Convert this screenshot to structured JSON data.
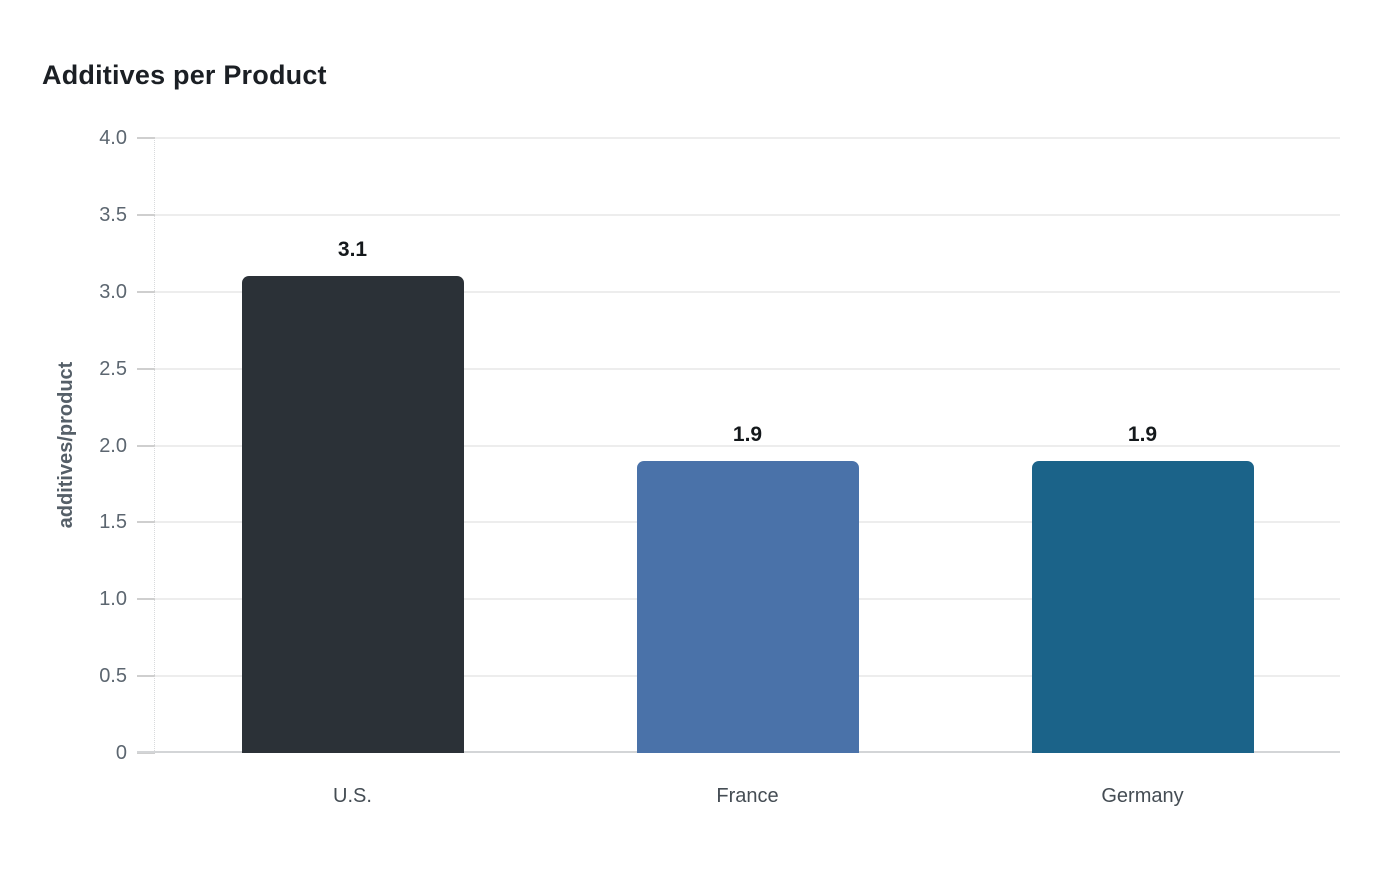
{
  "title": "Additives per Product",
  "chart_data": {
    "type": "bar",
    "title": "Additives per Product",
    "xlabel": "",
    "ylabel": "additives/product",
    "categories": [
      "U.S.",
      "France",
      "Germany"
    ],
    "values": [
      3.1,
      1.9,
      1.9
    ],
    "bar_labels": [
      "3.1",
      "1.9",
      "1.9"
    ],
    "bar_colors": [
      "#2b3137",
      "#4a72a9",
      "#1b6389"
    ],
    "ylim": [
      0,
      4.0
    ],
    "yticks": [
      {
        "value": 0,
        "label": "0"
      },
      {
        "value": 0.5,
        "label": "0.5"
      },
      {
        "value": 1.0,
        "label": "1.0"
      },
      {
        "value": 1.5,
        "label": "1.5"
      },
      {
        "value": 2.0,
        "label": "2.0"
      },
      {
        "value": 2.5,
        "label": "2.5"
      },
      {
        "value": 3.0,
        "label": "3.0"
      },
      {
        "value": 3.5,
        "label": "3.5"
      },
      {
        "value": 4.0,
        "label": "4.0"
      }
    ],
    "grid": "horizontal",
    "legend_position": "none",
    "background": "#ffffff"
  }
}
